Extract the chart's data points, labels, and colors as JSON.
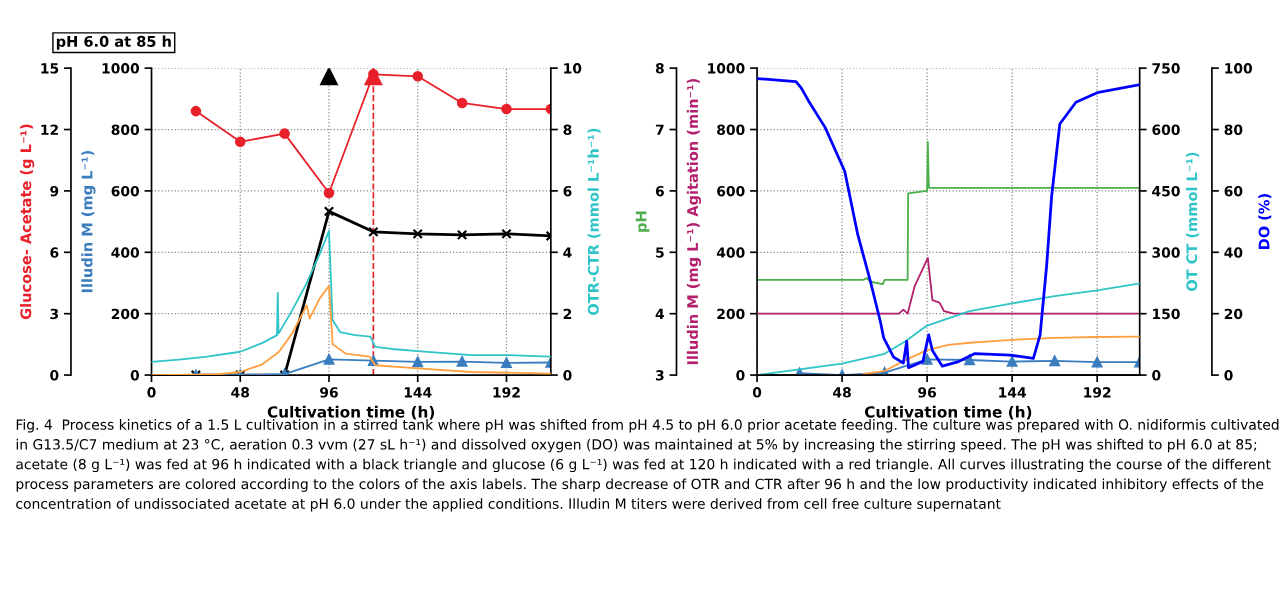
{
  "chart_data": [
    {
      "type": "line",
      "xlabel": "Cultivation time (h)",
      "ylabel": "Glucose- Acetate (g L⁻¹)",
      "y2label": "Illudin M (mg L⁻¹)",
      "y3label": "OTR-CTR (mmol L⁻¹h⁻¹)",
      "xlim": [
        0,
        216
      ],
      "xticks": [
        0,
        48,
        96,
        144,
        192
      ],
      "ylim": [
        0,
        15
      ],
      "yticks": [
        0,
        3,
        6,
        9,
        12,
        15
      ],
      "y2lim": [
        0,
        1000
      ],
      "y2ticks": [
        0,
        200,
        400,
        600,
        800,
        1000
      ],
      "y3lim": [
        0,
        10
      ],
      "y3ticks": [
        0,
        2,
        4,
        6,
        8,
        10
      ],
      "grid": true,
      "ref_lines": [
        {
          "axis": "x",
          "value": 120,
          "color": "#e8202a",
          "line_style": "dashed"
        }
      ],
      "annotations": [
        "pH 6.0 at 85 h",
        "Fig. 4  Process kinetics of a 1.5 L cultivation in a stirred tank where pH was shifted from pH 4.5 to pH 6.0 prior acetate feeding. The culture was prepared with O. nidiformis cultivated in G13.5/C7 medium at 23 °C, aeration 0.3 vvm (27 sL h⁻¹) and dissolved oxygen (DO) was maintained at 5% by increasing the stirring speed. The pH was shifted to pH 6.0 at 85; acetate (8 g L⁻¹) was fed at 96 h indicated with a black triangle and glucose (6 g L⁻¹) was fed at 120 h indicated with a red triangle. All curves illustrating the course of the different process parameters are colored according to the colors of the axis labels. The sharp decrease of OTR and CTR after 96 h and the low productivity indicated inhibitory effects of the concentration of undissociated acetate at pH 6.0 under the applied conditions. Illudin M titers were derived from cell free culture supernatant"
      ],
      "series": [
        {
          "type": "line",
          "axis": "y",
          "color": "#e8202a",
          "marker": "circle",
          "x": [
            24,
            48,
            72,
            96,
            120,
            144,
            168,
            192,
            216
          ],
          "values": [
            12.9,
            11.4,
            11.8,
            8.9,
            14.7,
            14.6,
            13.3,
            13.0,
            13.0
          ]
        },
        {
          "type": "line",
          "axis": "y",
          "color": "#000000",
          "marker": "cross",
          "x": [
            24,
            48,
            72,
            96,
            120,
            144,
            168,
            192,
            216
          ],
          "values": [
            0,
            0,
            0,
            8.0,
            7.0,
            6.9,
            6.85,
            6.9,
            6.8
          ]
        },
        {
          "type": "scatter",
          "axis": "y",
          "color": "#000000",
          "marker": "triangle",
          "x": [
            96
          ],
          "values": [
            14.6
          ]
        },
        {
          "type": "scatter",
          "axis": "y",
          "color": "#e8202a",
          "marker": "triangle",
          "x": [
            120
          ],
          "values": [
            14.6
          ]
        },
        {
          "type": "line",
          "axis": "y2",
          "color": "#3a7dbf",
          "marker": "triangle",
          "x": [
            24,
            48,
            72,
            96,
            120,
            144,
            168,
            192,
            216
          ],
          "values": [
            0,
            0,
            3,
            51,
            47,
            43,
            44,
            40,
            41
          ]
        },
        {
          "type": "line",
          "axis": "y3",
          "color": "#2ec4c8",
          "x": [
            0,
            15,
            30,
            48,
            60,
            67.9,
            68.3,
            68.7,
            76,
            84,
            91,
            96,
            97.9,
            102,
            110,
            118.4,
            121,
            130,
            144,
            173,
            192,
            216
          ],
          "values": [
            0.43,
            0.5,
            0.6,
            0.76,
            1.05,
            1.3,
            2.68,
            1.35,
            2.1,
            3.0,
            3.95,
            4.7,
            1.8,
            1.4,
            1.3,
            1.25,
            0.92,
            0.85,
            0.78,
            0.65,
            0.65,
            0.6
          ]
        },
        {
          "type": "line",
          "axis": "y3",
          "color": "#ffa040",
          "x": [
            0,
            35,
            48,
            60,
            69,
            76,
            84,
            85.5,
            91,
            96,
            98,
            105,
            118,
            121,
            144,
            173,
            216
          ],
          "values": [
            0,
            0.02,
            0.1,
            0.35,
            0.76,
            1.35,
            2.27,
            1.84,
            2.5,
            2.9,
            1.0,
            0.7,
            0.6,
            0.32,
            0.22,
            0.1,
            0.05
          ]
        }
      ]
    },
    {
      "type": "line",
      "xlabel": "Cultivation time (h)",
      "ylabel": "pH",
      "y2label": "Illudin M (mg L⁻¹) Agitation (min⁻¹)",
      "y3label": "OT CT (mmol L⁻¹)",
      "xlim": [
        0,
        216
      ],
      "xticks": [
        0,
        48,
        96,
        144,
        192
      ],
      "ylim": [
        3,
        8
      ],
      "yticks": [
        3,
        4,
        5,
        6,
        7,
        8
      ],
      "y2lim": [
        0,
        1000
      ],
      "y2ticks": [
        0,
        200,
        400,
        600,
        800,
        1000
      ],
      "y3lim": [
        0,
        750
      ],
      "y3ticks": [
        0,
        150,
        300,
        450,
        600,
        750
      ],
      "grid": true,
      "series": [
        {
          "type": "line",
          "axis": "y",
          "color": "#4cae4c",
          "x": [
            0,
            60,
            62,
            64,
            71,
            72,
            85,
            85.3,
            96,
            96.4,
            97,
            216
          ],
          "values": [
            4.55,
            4.55,
            4.58,
            4.52,
            4.48,
            4.55,
            4.55,
            5.96,
            6.0,
            6.8,
            6.05,
            6.05
          ]
        },
        {
          "type": "line",
          "axis": "y2",
          "color": "#b5206e",
          "x": [
            0,
            80,
            82.6,
            85,
            89,
            96.4,
            99,
            103,
            105.6,
            111,
            216
          ],
          "values": [
            200,
            200,
            213,
            200,
            290,
            382,
            244,
            236,
            208,
            200,
            200
          ]
        },
        {
          "type": "line",
          "axis": "y2",
          "color": "#3a7dbf",
          "marker": "triangle",
          "x": [
            24,
            48,
            72,
            96,
            120,
            144,
            168,
            192,
            216
          ],
          "values": [
            6,
            0,
            8,
            51,
            49,
            44,
            46,
            42,
            42
          ]
        },
        {
          "type": "line",
          "axis": "y3",
          "color": "#2ec4c8",
          "x": [
            0,
            48,
            72,
            84,
            96,
            120,
            144,
            168,
            192,
            216
          ],
          "values": [
            0,
            28,
            52,
            83,
            121,
            156,
            175,
            193,
            207,
            224
          ]
        },
        {
          "type": "line",
          "axis": "y3",
          "color": "#ffa040",
          "x": [
            60,
            72,
            84,
            96,
            108,
            120,
            144,
            168,
            192,
            216
          ],
          "values": [
            2,
            10,
            37,
            61,
            74,
            79,
            86,
            91,
            93,
            94
          ]
        }
      ]
    },
    {
      "type": "line",
      "ylabel": "DO (%)",
      "xlim": [
        0,
        216
      ],
      "ylim": [
        0,
        100
      ],
      "yticks": [
        0,
        20,
        40,
        60,
        80,
        100
      ],
      "tick_labels": "y",
      "series": [
        {
          "type": "line",
          "color": "#0000ff",
          "x": [
            0,
            22,
            25,
            29,
            38.4,
            49.5,
            56.8,
            64,
            69.7,
            71.5,
            77,
            82.6,
            84.5,
            85.5,
            93.6,
            96.9,
            99,
            104.6,
            113.8,
            123,
            143,
            156,
            159.8,
            163.5,
            166.3,
            170.9,
            180,
            192,
            216
          ],
          "values": [
            96.6,
            95.6,
            93.5,
            89.4,
            80.7,
            66.4,
            45.9,
            30.5,
            17.2,
            12.1,
            5.9,
            3.9,
            11,
            2.4,
            4.4,
            13.1,
            8,
            2.9,
            4.4,
            7,
            6.5,
            5.4,
            13.1,
            35.7,
            58.2,
            81.8,
            88.9,
            92,
            94.6
          ]
        }
      ]
    }
  ]
}
